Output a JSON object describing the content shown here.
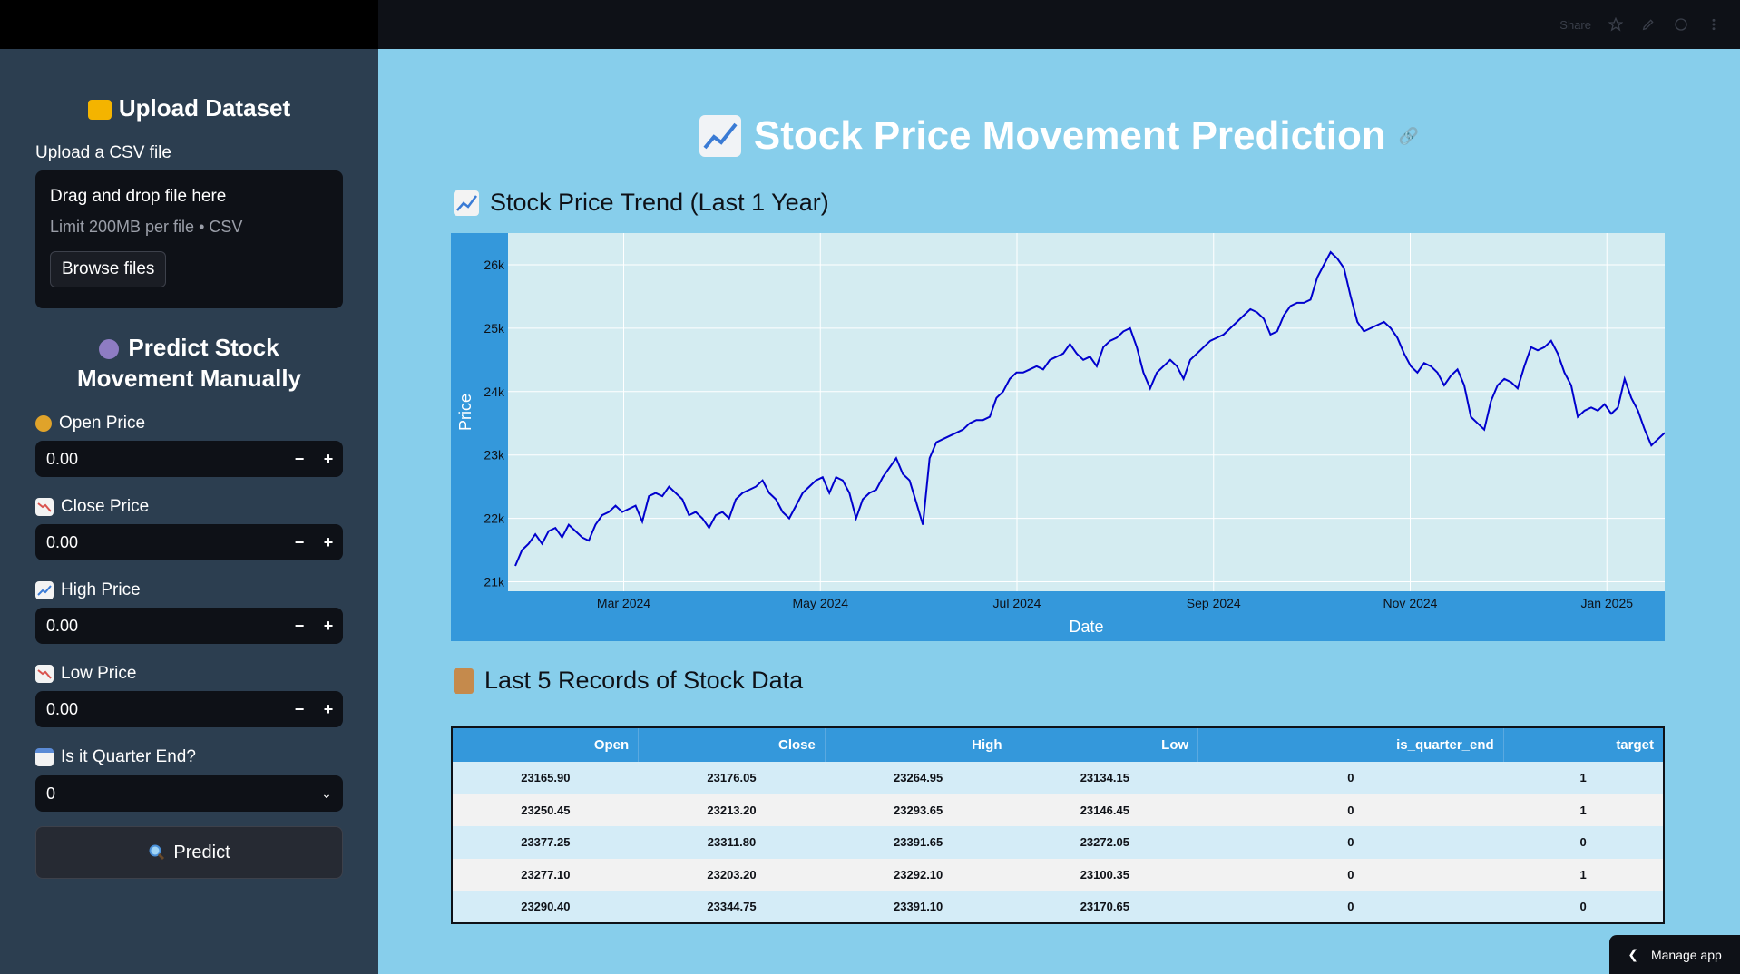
{
  "toolbar": {
    "share_label": "Share"
  },
  "sidebar": {
    "upload_heading": "Upload Dataset",
    "upload_label": "Upload a CSV file",
    "uploader": {
      "drag_text": "Drag and drop file here",
      "limit_text": "Limit 200MB per file • CSV",
      "browse_label": "Browse files"
    },
    "predict_heading_line1": "Predict Stock",
    "predict_heading_line2": "Movement Manually",
    "fields": [
      {
        "label": "Open Price",
        "value": "0.00",
        "icon": "money-bag-icon"
      },
      {
        "label": "Close Price",
        "value": "0.00",
        "icon": "chart-decreasing-icon"
      },
      {
        "label": "High Price",
        "value": "0.00",
        "icon": "chart-increasing-icon"
      },
      {
        "label": "Low Price",
        "value": "0.00",
        "icon": "chart-decreasing-icon"
      }
    ],
    "quarter_label": "Is it Quarter End?",
    "quarter_value": "0",
    "predict_button": "Predict",
    "step_minus": "−",
    "step_plus": "+"
  },
  "main": {
    "title": "Stock Price Movement Prediction",
    "chart_heading": "Stock Price Trend (Last 1 Year)",
    "table_heading": "Last 5 Records of Stock Data"
  },
  "chart_data": {
    "type": "line",
    "xlabel": "Date",
    "ylabel": "Price",
    "x_ticks": [
      "Mar 2024",
      "May 2024",
      "Jul 2024",
      "Sep 2024",
      "Nov 2024",
      "Jan 2025"
    ],
    "y_ticks": [
      "21k",
      "22k",
      "23k",
      "24k",
      "25k",
      "26k"
    ],
    "ylim": [
      20850,
      26500
    ],
    "grid": true,
    "line_color": "#0000cd",
    "series": [
      {
        "values": [
          21250,
          21500,
          21600,
          21750,
          21600,
          21800,
          21850,
          21700,
          21900,
          21800,
          21700,
          21650,
          21900,
          22050,
          22100,
          22200,
          22100,
          22150,
          22200,
          21950,
          22350,
          22400,
          22350,
          22500,
          22400,
          22300,
          22050,
          22100,
          22000,
          21850,
          22050,
          22100,
          22000,
          22300,
          22400,
          22450,
          22500,
          22600,
          22400,
          22300,
          22100,
          22000,
          22200,
          22400,
          22500,
          22600,
          22650,
          22400,
          22650,
          22600,
          22400,
          22000,
          22300,
          22400,
          22450,
          22650,
          22800,
          22950,
          22700,
          22600,
          22250,
          21900,
          22950,
          23200,
          23250,
          23300,
          23350,
          23400,
          23500,
          23550,
          23550,
          23600,
          23900,
          24000,
          24200,
          24300,
          24300,
          24350,
          24400,
          24350,
          24500,
          24550,
          24600,
          24750,
          24600,
          24500,
          24550,
          24400,
          24700,
          24800,
          24850,
          24950,
          25000,
          24700,
          24300,
          24050,
          24300,
          24400,
          24500,
          24400,
          24200,
          24500,
          24600,
          24700,
          24800,
          24850,
          24900,
          25000,
          25100,
          25200,
          25300,
          25250,
          25150,
          24900,
          24950,
          25200,
          25350,
          25400,
          25400,
          25450,
          25800,
          26000,
          26200,
          26100,
          25950,
          25500,
          25100,
          24950,
          25000,
          25050,
          25100,
          25000,
          24850,
          24600,
          24400,
          24300,
          24450,
          24400,
          24300,
          24100,
          24250,
          24350,
          24100,
          23600,
          23500,
          23400,
          23850,
          24100,
          24200,
          24150,
          24050,
          24400,
          24700,
          24650,
          24700,
          24800,
          24600,
          24300,
          24100,
          23600,
          23700,
          23750,
          23700,
          23800,
          23650,
          23750,
          24200,
          23900,
          23700,
          23400,
          23150,
          23250,
          23350
        ]
      }
    ]
  },
  "table": {
    "headers": [
      "Open",
      "Close",
      "High",
      "Low",
      "is_quarter_end",
      "target"
    ],
    "rows": [
      [
        "23165.90",
        "23176.05",
        "23264.95",
        "23134.15",
        "0",
        "1"
      ],
      [
        "23250.45",
        "23213.20",
        "23293.65",
        "23146.45",
        "0",
        "1"
      ],
      [
        "23377.25",
        "23311.80",
        "23391.65",
        "23272.05",
        "0",
        "0"
      ],
      [
        "23277.10",
        "23203.20",
        "23292.10",
        "23100.35",
        "0",
        "1"
      ],
      [
        "23290.40",
        "23344.75",
        "23391.10",
        "23170.65",
        "0",
        "0"
      ]
    ]
  },
  "manage_app": "Manage app"
}
